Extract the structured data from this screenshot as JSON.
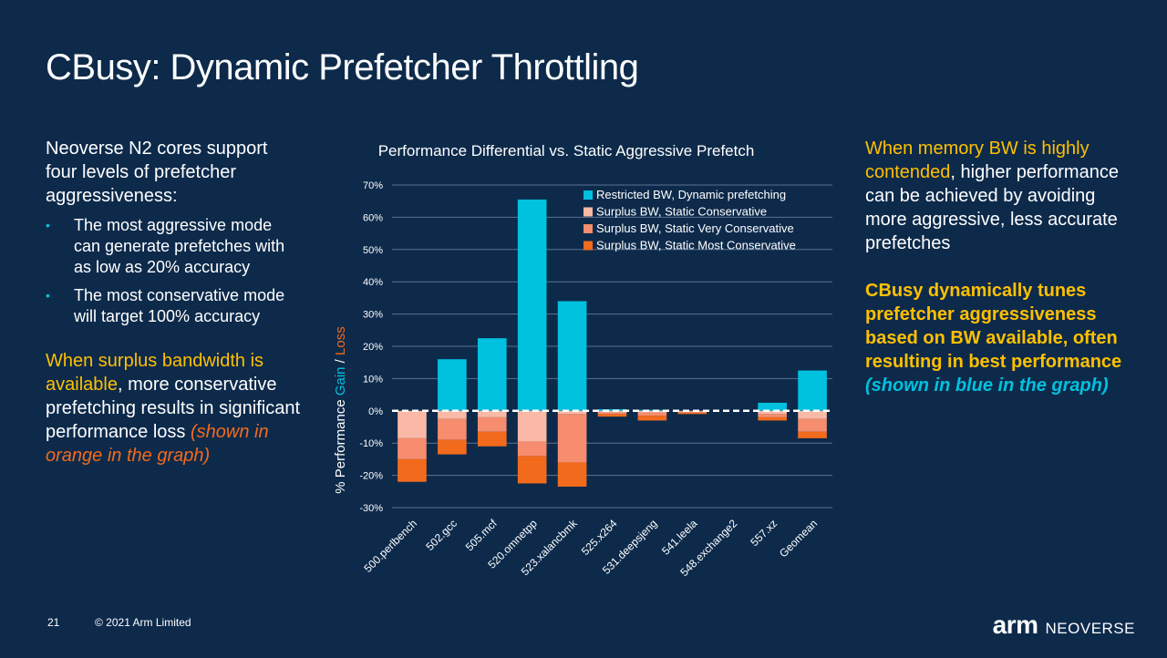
{
  "slide": {
    "title": "CBusy: Dynamic Prefetcher Throttling",
    "page_number": "21",
    "copyright": "© 2021 Arm Limited",
    "logo_arm": "arm",
    "logo_neoverse": "NEOVERSE"
  },
  "left": {
    "intro": "Neoverse N2 cores support four levels of prefetcher aggressiveness:",
    "bullets": [
      "The most aggressive mode can generate prefetches with as low as 20% accuracy",
      "The most conservative mode will target 100% accuracy"
    ],
    "para2_highlight": "When surplus bandwidth is available",
    "para2_text": ", more conservative prefetching results in significant performance loss ",
    "para2_note": "(shown in orange in the graph)"
  },
  "right": {
    "para1_highlight": "When memory BW is highly contended",
    "para1_text": ", higher performance can be achieved by avoiding more aggressive, less accurate prefetches",
    "para2_text": "CBusy dynamically tunes prefetcher aggressiveness based on BW available, often resulting in best performance ",
    "para2_note": "(shown in blue in the graph)"
  },
  "colors": {
    "background": "#0d2a4b",
    "accent_yellow": "#ffc000",
    "accent_orange": "#f26b1d",
    "accent_blue": "#00c1de"
  },
  "chart_data": {
    "type": "bar",
    "title": "Performance Differential vs. Static Aggressive Prefetch",
    "ylabel_prefix": "% Performance ",
    "ylabel_gain": "Gain",
    "ylabel_sep": " / ",
    "ylabel_loss": "Loss",
    "ylim": [
      -30,
      70
    ],
    "yticks": [
      -30,
      -20,
      -10,
      0,
      10,
      20,
      30,
      40,
      50,
      60,
      70
    ],
    "ytick_labels": [
      "-30%",
      "-20%",
      "-10%",
      "0%",
      "10%",
      "20%",
      "30%",
      "40%",
      "50%",
      "60%",
      "70%"
    ],
    "grid": true,
    "legend_position": "top-right",
    "categories": [
      "500.perlbench",
      "502.gcc",
      "505.mcf",
      "520.omnetpp",
      "523.xalancbmk",
      "525.x264",
      "531.deepsjeng",
      "541.leela",
      "548.exchange2",
      "557.xz",
      "Geomean"
    ],
    "series": [
      {
        "name": "Restricted BW, Dynamic prefetching",
        "color": "#00c1de",
        "values": [
          0,
          16,
          22.5,
          65.5,
          34,
          0.5,
          0.3,
          0,
          0,
          2.5,
          12.5
        ]
      },
      {
        "name": "Surplus BW, Static Conservative",
        "color": "#f9b9a6",
        "values": [
          -8.5,
          -2.5,
          -2,
          -9.5,
          -1,
          -0.5,
          -0.5,
          -0.3,
          0,
          -1,
          -2.5
        ]
      },
      {
        "name": "Surplus BW, Static Very Conservative",
        "color": "#f58d6e",
        "values": [
          -15,
          -9,
          -6.5,
          -14,
          -16,
          -1,
          -1.5,
          -0.6,
          0,
          -2,
          -6.5
        ]
      },
      {
        "name": "Surplus BW, Static Most Conservative",
        "color": "#f26b1d",
        "values": [
          -22,
          -13.5,
          -11,
          -22.5,
          -23.5,
          -1.8,
          -3,
          -1,
          0,
          -3,
          -8.5
        ]
      }
    ]
  }
}
